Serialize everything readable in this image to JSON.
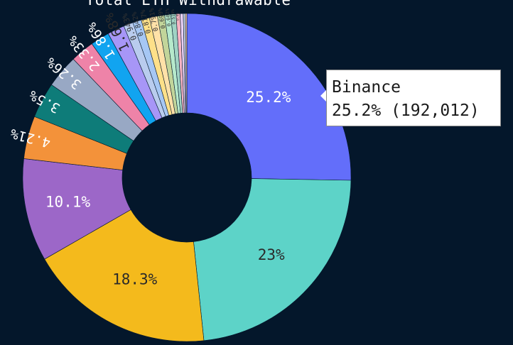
{
  "chart_data": {
    "type": "pie",
    "title": "Total ETH Withdrawable",
    "hole": true,
    "labels": [
      "Binance",
      "",
      "",
      "",
      "",
      "",
      "",
      "",
      "",
      "",
      "",
      "",
      "",
      "",
      "",
      "",
      "",
      "",
      "",
      "",
      ""
    ],
    "values": [
      25.2,
      23,
      18.3,
      10.1,
      4.21,
      3.5,
      3.26,
      2.33,
      1.86,
      1.68,
      0.943,
      0.842,
      0.817,
      0.791,
      0.699,
      0.602,
      0.514,
      0.4,
      0.3,
      0.2,
      0.15
    ],
    "percent_labels": [
      "25.2%",
      "23%",
      "18.3%",
      "10.1%",
      "4.21%",
      "3.5%",
      "3.26%",
      "2.33%",
      "1.86%",
      "1.68%",
      "0.943%",
      "0.842%",
      "0.817%",
      "0.791%",
      "0.699%",
      "0.602%",
      "0.514%",
      "0.4%",
      "",
      "",
      ""
    ],
    "colors": [
      "#636efa",
      "#5dd3c8",
      "#f4ba1c",
      "#9c67c8",
      "#f3923a",
      "#0e7c79",
      "#98a8c4",
      "#ee83a8",
      "#11a4f0",
      "#a796f7",
      "#b9ccee",
      "#a6c7f4",
      "#fee089",
      "#ffe1a8",
      "#c2d59a",
      "#b6e9cb",
      "#a0d3c4",
      "#f7b4c4",
      "#e9d1f5",
      "#ccd8ee",
      "#ffd1a8"
    ]
  },
  "tooltip": {
    "label": "Binance",
    "value": "25.2% (192,012)"
  }
}
